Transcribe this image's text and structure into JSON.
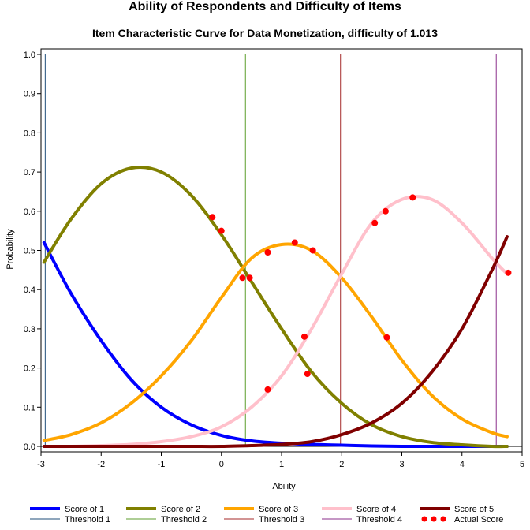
{
  "chart_data": {
    "type": "line",
    "title": "Ability of Respondents and Difficulty of Items",
    "subtitle": "Item Characteristic Curve for Data Monetization, difficulty of 1.013",
    "xlabel": "Ability",
    "ylabel": "Probability",
    "xlim": [
      -3,
      5
    ],
    "ylim": [
      0,
      1.0
    ],
    "x_ticks": [
      -3,
      -2,
      -1,
      0,
      1,
      2,
      3,
      4,
      5
    ],
    "y_ticks": [
      0.0,
      0.1,
      0.2,
      0.3,
      0.4,
      0.5,
      0.6,
      0.7,
      0.8,
      0.9,
      1.0
    ],
    "x_tick_labels": [
      "-3",
      "-2",
      "-1",
      "0",
      "1",
      "2",
      "3",
      "4",
      "5"
    ],
    "y_tick_labels": [
      "0.0",
      "0.1",
      "0.2",
      "0.3",
      "0.4",
      "0.5",
      "0.6",
      "0.7",
      "0.8",
      "0.9",
      "1.0"
    ],
    "grid": false,
    "legend_position": "bottom",
    "x": [
      -2.95,
      -2.5,
      -2.0,
      -1.5,
      -1.0,
      -0.5,
      0.0,
      0.5,
      1.0,
      1.5,
      2.0,
      2.5,
      3.0,
      3.5,
      4.0,
      4.5,
      4.75
    ],
    "series": [
      {
        "name": "Score of 1",
        "color": "#0000ff",
        "values": [
          0.52,
          0.39,
          0.27,
          0.17,
          0.1,
          0.055,
          0.028,
          0.014,
          0.008,
          0.005,
          0.003,
          0.001,
          0.0,
          0.0,
          0.0,
          0.0,
          0.0
        ]
      },
      {
        "name": "Score of 2",
        "color": "#808000",
        "values": [
          0.47,
          0.58,
          0.67,
          0.71,
          0.7,
          0.64,
          0.54,
          0.42,
          0.3,
          0.19,
          0.11,
          0.055,
          0.025,
          0.01,
          0.004,
          0.0,
          0.0
        ]
      },
      {
        "name": "Score of 3",
        "color": "#ffa500",
        "values": [
          0.015,
          0.03,
          0.06,
          0.11,
          0.18,
          0.27,
          0.38,
          0.48,
          0.515,
          0.5,
          0.43,
          0.33,
          0.22,
          0.13,
          0.07,
          0.035,
          0.025
        ]
      },
      {
        "name": "Score of 4",
        "color": "#ffc0cb",
        "values": [
          0.0,
          0.0,
          0.002,
          0.005,
          0.012,
          0.025,
          0.05,
          0.1,
          0.18,
          0.3,
          0.44,
          0.57,
          0.63,
          0.63,
          0.57,
          0.48,
          0.44
        ]
      },
      {
        "name": "Score of 5",
        "color": "#800000",
        "values": [
          0.0,
          0.0,
          0.0,
          0.0,
          0.0,
          0.0,
          0.0,
          0.002,
          0.005,
          0.012,
          0.03,
          0.06,
          0.11,
          0.19,
          0.3,
          0.45,
          0.535
        ]
      }
    ],
    "thresholds": [
      {
        "name": "Threshold 1",
        "x": -2.93,
        "color": "#1f4e79"
      },
      {
        "name": "Threshold 2",
        "x": 0.4,
        "color": "#5c9e2c"
      },
      {
        "name": "Threshold 3",
        "x": 1.98,
        "color": "#a52a2a"
      },
      {
        "name": "Threshold 4",
        "x": 4.57,
        "color": "#8b2f8b"
      }
    ],
    "actual_scores": {
      "name": "Actual Score",
      "color": "#ff0000",
      "points": [
        {
          "x": -0.15,
          "y": 0.585
        },
        {
          "x": 0.0,
          "y": 0.55
        },
        {
          "x": 0.35,
          "y": 0.43
        },
        {
          "x": 0.47,
          "y": 0.43
        },
        {
          "x": 0.77,
          "y": 0.495
        },
        {
          "x": 1.22,
          "y": 0.52
        },
        {
          "x": 1.52,
          "y": 0.5
        },
        {
          "x": 0.77,
          "y": 0.145
        },
        {
          "x": 1.38,
          "y": 0.28
        },
        {
          "x": 1.43,
          "y": 0.185
        },
        {
          "x": 2.55,
          "y": 0.57
        },
        {
          "x": 2.73,
          "y": 0.6
        },
        {
          "x": 3.18,
          "y": 0.635
        },
        {
          "x": 2.75,
          "y": 0.278
        },
        {
          "x": 4.77,
          "y": 0.443
        }
      ]
    }
  }
}
